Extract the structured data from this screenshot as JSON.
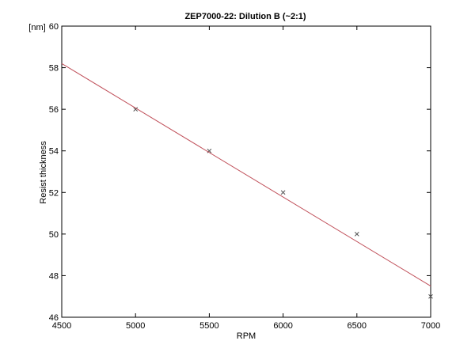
{
  "chart_data": {
    "type": "scatter",
    "title": "ZEP7000-22: Dilution B (~2:1)",
    "xlabel": "RPM",
    "ylabel": "Resist thickness",
    "yunit": "[nm]",
    "xlim": [
      4500,
      7000
    ],
    "ylim": [
      46,
      60
    ],
    "xticks": [
      4500,
      5000,
      5500,
      6000,
      6500,
      7000
    ],
    "yticks": [
      46,
      48,
      50,
      52,
      54,
      56,
      58,
      60
    ],
    "grid": false,
    "legend": "none",
    "series": [
      {
        "kind": "scatter",
        "marker": "x",
        "color": "#555555",
        "x": [
          5000,
          5500,
          6000,
          6500,
          7000
        ],
        "y": [
          56,
          54,
          52,
          50,
          47
        ]
      },
      {
        "kind": "line",
        "color": "#c0505a",
        "x": [
          4500,
          7000
        ],
        "y": [
          58.2,
          47.5
        ]
      }
    ]
  }
}
